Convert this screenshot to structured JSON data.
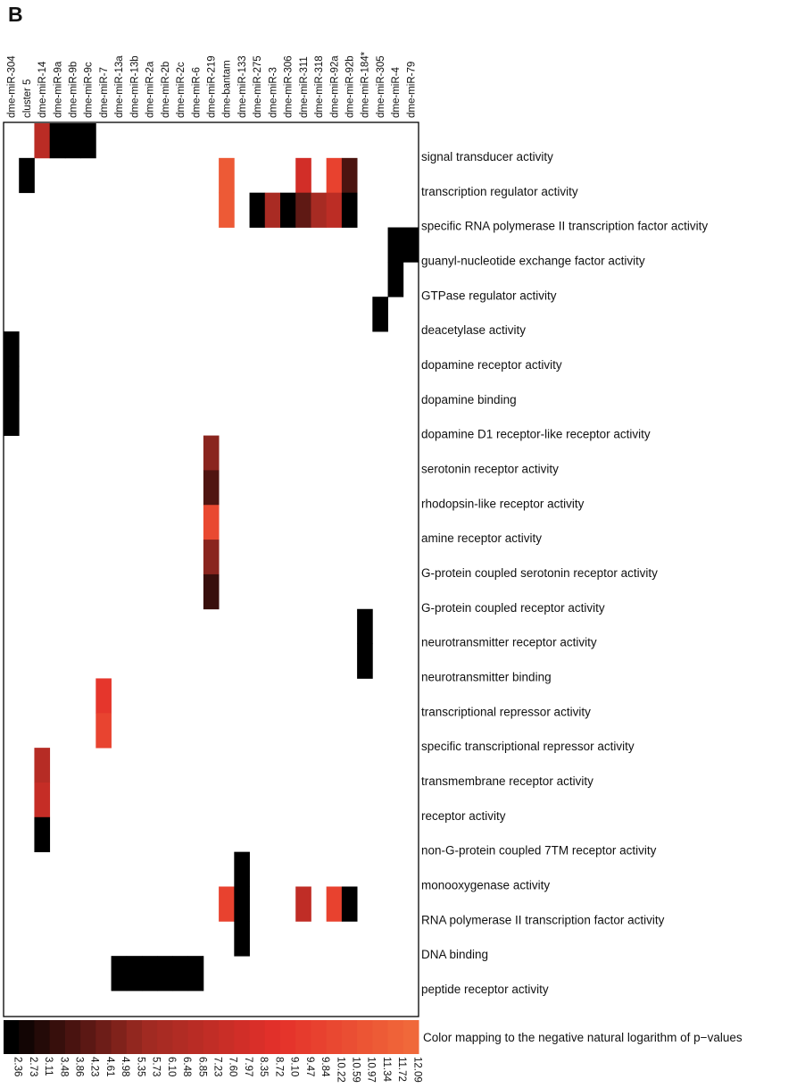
{
  "panel_label": "B",
  "chart_data": {
    "type": "heatmap",
    "columns": [
      "dme-miR-304",
      "cluster 5",
      "dme-miR-14",
      "dme-miR-9a",
      "dme-miR-9b",
      "dme-miR-9c",
      "dme-miR-7",
      "dme-miR-13a",
      "dme-miR-13b",
      "dme-miR-2a",
      "dme-miR-2b",
      "dme-miR-2c",
      "dme-miR-6",
      "dme-miR-219",
      "dme-bantam",
      "dme-miR-133",
      "dme-miR-275",
      "dme-miR-3",
      "dme-miR-306",
      "dme-miR-311",
      "dme-miR-318",
      "dme-miR-92a",
      "dme-miR-92b",
      "dme-miR-184*",
      "dme-miR-305",
      "dme-miR-4",
      "dme-miR-79"
    ],
    "rows": [
      "signal transducer activity",
      "transcription regulator activity",
      "specific RNA polymerase II transcription factor activity",
      "guanyl-nucleotide exchange factor activity",
      "GTPase regulator activity",
      "deacetylase activity",
      "dopamine receptor activity",
      "dopamine binding",
      "dopamine D1 receptor-like receptor activity",
      "serotonin receptor activity",
      "rhodopsin-like receptor activity",
      "amine receptor activity",
      "G-protein coupled serotonin receptor activity",
      "G-protein coupled receptor activity",
      "neurotransmitter receptor activity",
      "neurotransmitter binding",
      "transcriptional repressor activity",
      "specific transcriptional repressor activity",
      "transmembrane receptor activity",
      "receptor activity",
      "non-G-protein coupled 7TM receptor activity",
      "monooxygenase activity",
      "RNA polymerase II transcription factor activity",
      "DNA binding",
      "peptide receptor activity"
    ],
    "cells": [
      {
        "row": 0,
        "col": 2,
        "value": 6.9
      },
      {
        "row": 0,
        "col": 3,
        "value": 2.36
      },
      {
        "row": 0,
        "col": 4,
        "value": 2.36
      },
      {
        "row": 0,
        "col": 5,
        "value": 2.36
      },
      {
        "row": 1,
        "col": 1,
        "value": 2.36
      },
      {
        "row": 1,
        "col": 14,
        "value": 11.3
      },
      {
        "row": 1,
        "col": 19,
        "value": 8.0
      },
      {
        "row": 1,
        "col": 21,
        "value": 9.9
      },
      {
        "row": 1,
        "col": 22,
        "value": 3.9
      },
      {
        "row": 2,
        "col": 14,
        "value": 11.3
      },
      {
        "row": 2,
        "col": 16,
        "value": 2.36
      },
      {
        "row": 2,
        "col": 17,
        "value": 6.1
      },
      {
        "row": 2,
        "col": 18,
        "value": 2.36
      },
      {
        "row": 2,
        "col": 19,
        "value": 4.3
      },
      {
        "row": 2,
        "col": 20,
        "value": 6.0
      },
      {
        "row": 2,
        "col": 21,
        "value": 7.0
      },
      {
        "row": 2,
        "col": 22,
        "value": 2.36
      },
      {
        "row": 3,
        "col": 25,
        "value": 2.36
      },
      {
        "row": 3,
        "col": 26,
        "value": 2.36
      },
      {
        "row": 4,
        "col": 25,
        "value": 2.36
      },
      {
        "row": 5,
        "col": 24,
        "value": 2.36
      },
      {
        "row": 6,
        "col": 0,
        "value": 2.36
      },
      {
        "row": 7,
        "col": 0,
        "value": 2.36
      },
      {
        "row": 8,
        "col": 0,
        "value": 2.36
      },
      {
        "row": 9,
        "col": 13,
        "value": 5.2
      },
      {
        "row": 10,
        "col": 13,
        "value": 4.0
      },
      {
        "row": 11,
        "col": 13,
        "value": 10.3
      },
      {
        "row": 12,
        "col": 13,
        "value": 5.2
      },
      {
        "row": 13,
        "col": 13,
        "value": 3.5
      },
      {
        "row": 14,
        "col": 23,
        "value": 2.36
      },
      {
        "row": 15,
        "col": 23,
        "value": 2.36
      },
      {
        "row": 16,
        "col": 6,
        "value": 9.2
      },
      {
        "row": 17,
        "col": 6,
        "value": 10.0
      },
      {
        "row": 18,
        "col": 2,
        "value": 6.7
      },
      {
        "row": 19,
        "col": 2,
        "value": 7.4
      },
      {
        "row": 20,
        "col": 2,
        "value": 2.36
      },
      {
        "row": 21,
        "col": 15,
        "value": 2.36
      },
      {
        "row": 22,
        "col": 14,
        "value": 9.9
      },
      {
        "row": 22,
        "col": 15,
        "value": 2.36
      },
      {
        "row": 22,
        "col": 19,
        "value": 7.2
      },
      {
        "row": 22,
        "col": 21,
        "value": 9.9
      },
      {
        "row": 22,
        "col": 22,
        "value": 2.36
      },
      {
        "row": 23,
        "col": 15,
        "value": 2.36
      },
      {
        "row": 24,
        "col": 7,
        "value": 2.36
      },
      {
        "row": 24,
        "col": 8,
        "value": 2.36
      },
      {
        "row": 24,
        "col": 9,
        "value": 2.36
      },
      {
        "row": 24,
        "col": 10,
        "value": 2.36
      },
      {
        "row": 24,
        "col": 11,
        "value": 2.36
      },
      {
        "row": 24,
        "col": 12,
        "value": 2.36
      }
    ],
    "color_scale": {
      "label": "Color mapping to the negative natural logarithm of p−values",
      "ticks": [
        "2.36",
        "2.73",
        "3.11",
        "3.48",
        "3.86",
        "4.23",
        "4.61",
        "4.98",
        "5.35",
        "5.73",
        "6.10",
        "6.48",
        "6.85",
        "7.23",
        "7.60",
        "7.97",
        "8.35",
        "8.72",
        "9.10",
        "9.47",
        "9.84",
        "10.22",
        "10.59",
        "10.97",
        "11.34",
        "11.72",
        "12.09"
      ],
      "min": 2.36,
      "max": 12.09,
      "colors": [
        "#000000",
        "#9e2a22",
        "#e4302a",
        "#f0683a"
      ]
    }
  }
}
